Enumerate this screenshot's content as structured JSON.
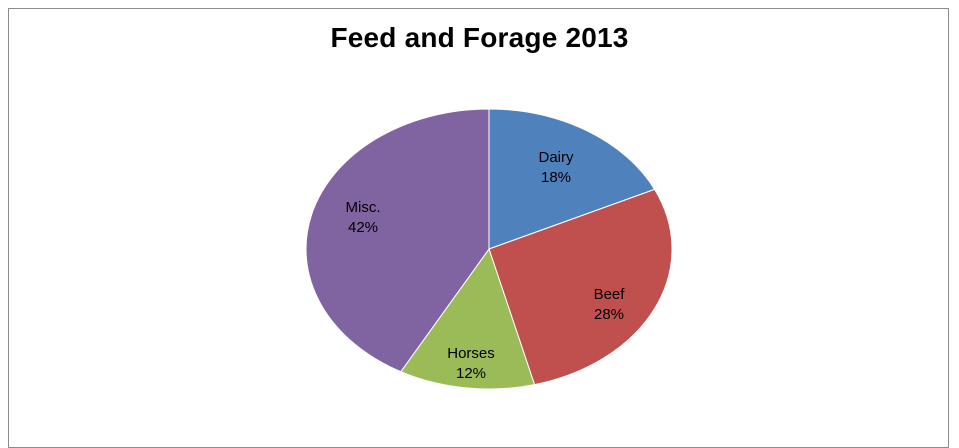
{
  "chart_data": {
    "type": "pie",
    "title": "Feed and Forage 2013",
    "categories": [
      "Dairy",
      "Beef",
      "Horses",
      "Misc."
    ],
    "values": [
      18,
      28,
      12,
      42
    ],
    "labels": [
      "18%",
      "28%",
      "12%",
      "42%"
    ],
    "colors": [
      "#4f81bd",
      "#c0504d",
      "#9bbb59",
      "#8064a2"
    ],
    "start": "top (12 o'clock)",
    "direction": "clockwise",
    "legend": "none",
    "data_labels": "inside slices (category and percent)"
  }
}
